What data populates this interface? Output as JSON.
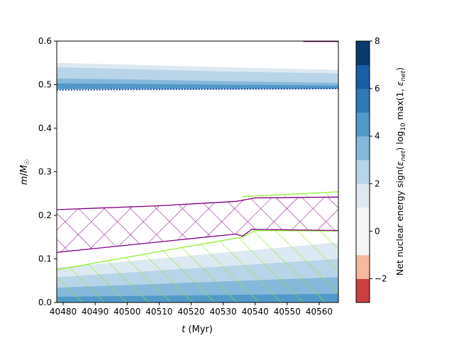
{
  "chart_data": {
    "type": "heatmap",
    "title": "",
    "xlabel": "t (Myr)",
    "ylabel": "m/M☉",
    "xlim": [
      40478,
      40566
    ],
    "ylim": [
      0.0,
      0.6
    ],
    "xticks": [
      40480,
      40490,
      40500,
      40510,
      40520,
      40530,
      40540,
      40550,
      40560
    ],
    "yticks": [
      0.0,
      0.1,
      0.2,
      0.3,
      0.4,
      0.5,
      0.6
    ],
    "xtick_labels": [
      "40480",
      "40490",
      "40500",
      "40510",
      "40520",
      "40530",
      "40540",
      "40550",
      "40560"
    ],
    "ytick_labels": [
      "0.0",
      "0.1",
      "0.2",
      "0.3",
      "0.4",
      "0.5",
      "0.6"
    ],
    "colorbar": {
      "label": "Net nuclear energy sign(εnet) log10 max(1, εnet)",
      "range": [
        -3,
        8
      ],
      "levels": [
        -3,
        -2,
        -1,
        0,
        1,
        2,
        3,
        4,
        5,
        6,
        7,
        8
      ],
      "tick_values": [
        -2,
        0,
        2,
        4,
        6,
        8
      ],
      "tick_labels": [
        "−2",
        "0",
        "2",
        "4",
        "6",
        "8"
      ],
      "colors": [
        "#c84040",
        "#f6b8a0",
        "#f5f5f5",
        "#f5f5f5",
        "#dde9f2",
        "#b8d4e8",
        "#86b8db",
        "#5299c9",
        "#2f79b7",
        "#1a5ea6",
        "#0b3a6c"
      ]
    },
    "burning_shell": {
      "layers": [
        {
          "level": 2,
          "color": "#dde9f2",
          "bottom": [
            [
              40478,
              0.488
            ],
            [
              40566,
              0.489
            ]
          ],
          "top": [
            [
              40478,
              0.55
            ],
            [
              40500,
              0.546
            ],
            [
              40530,
              0.54
            ],
            [
              40566,
              0.534
            ]
          ]
        },
        {
          "level": 3,
          "color": "#b8d4e8",
          "bottom": [
            [
              40478,
              0.489
            ],
            [
              40566,
              0.49
            ]
          ],
          "top": [
            [
              40478,
              0.54
            ],
            [
              40500,
              0.536
            ],
            [
              40530,
              0.53
            ],
            [
              40566,
              0.526
            ]
          ]
        },
        {
          "level": 4,
          "color": "#86b8db",
          "bottom": [
            [
              40478,
              0.49
            ],
            [
              40566,
              0.491
            ]
          ],
          "top": [
            [
              40478,
              0.514
            ],
            [
              40500,
              0.512
            ],
            [
              40530,
              0.508
            ],
            [
              40566,
              0.504
            ]
          ]
        },
        {
          "level": 5,
          "color": "#5299c9",
          "bottom": [
            [
              40478,
              0.49
            ],
            [
              40566,
              0.491
            ]
          ],
          "top": [
            [
              40478,
              0.503
            ],
            [
              40500,
              0.502
            ],
            [
              40530,
              0.5
            ],
            [
              40566,
              0.498
            ]
          ]
        }
      ],
      "boundary_line": {
        "style": "dotted",
        "color": "#0a2a8c",
        "points": [
          [
            40478,
            0.488
          ],
          [
            40566,
            0.491
          ]
        ]
      }
    },
    "core_burning": {
      "layers": [
        {
          "level": 2,
          "color": "#dde9f2",
          "top": [
            [
              40478,
              0.08
            ],
            [
              40566,
              0.138
            ]
          ]
        },
        {
          "level": 3,
          "color": "#b8d4e8",
          "top": [
            [
              40478,
              0.058
            ],
            [
              40566,
              0.1
            ]
          ]
        },
        {
          "level": 4,
          "color": "#86b8db",
          "top": [
            [
              40478,
              0.034
            ],
            [
              40566,
              0.058
            ]
          ]
        },
        {
          "level": 5,
          "color": "#5299c9",
          "top": [
            [
              40478,
              0.013
            ],
            [
              40566,
              0.02
            ]
          ]
        }
      ]
    },
    "convective_core": {
      "hatch": "diagonal",
      "color": "#88ee22",
      "top": [
        [
          40478,
          0.075
        ],
        [
          40520,
          0.13
        ],
        [
          40536,
          0.15
        ],
        [
          40540,
          0.165
        ],
        [
          40566,
          0.164
        ]
      ],
      "upper_region": {
        "top": [
          [
            40536,
            0.243
          ],
          [
            40566,
            0.254
          ]
        ],
        "bottom": [
          [
            40536,
            0.24
          ],
          [
            40566,
            0.242
          ]
        ]
      }
    },
    "semiconvective_zone": {
      "hatch": "cross",
      "color": "#800080",
      "top": [
        [
          40478,
          0.213
        ],
        [
          40510,
          0.222
        ],
        [
          40534,
          0.232
        ],
        [
          40537,
          0.236
        ],
        [
          40540,
          0.24
        ],
        [
          40566,
          0.242
        ]
      ],
      "bottom": [
        [
          40478,
          0.115
        ],
        [
          40534,
          0.157
        ],
        [
          40536,
          0.152
        ],
        [
          40539,
          0.168
        ],
        [
          40566,
          0.165
        ]
      ]
    },
    "surface_line": {
      "color": "#800080",
      "points": [
        [
          40555,
          0.599
        ],
        [
          40566,
          0.599
        ]
      ]
    }
  }
}
